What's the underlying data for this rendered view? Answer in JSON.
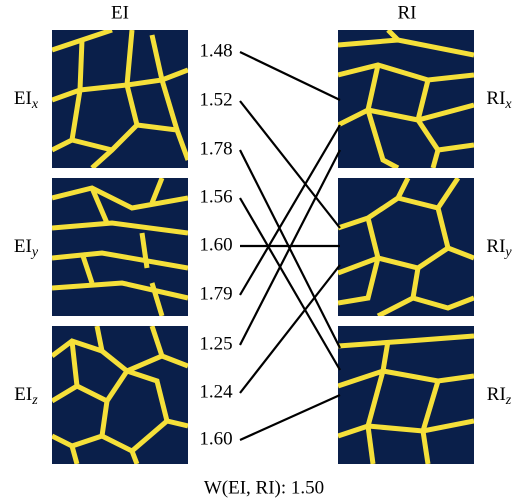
{
  "titles": {
    "left": "EI",
    "right": "RI"
  },
  "left_labels": [
    {
      "base": "EI",
      "sub": "x"
    },
    {
      "base": "EI",
      "sub": "y"
    },
    {
      "base": "EI",
      "sub": "z"
    }
  ],
  "right_labels": [
    {
      "base": "RI",
      "sub": "x"
    },
    {
      "base": "RI",
      "sub": "y"
    },
    {
      "base": "RI",
      "sub": "z"
    }
  ],
  "weights": [
    "1.48",
    "1.52",
    "1.78",
    "1.56",
    "1.60",
    "1.79",
    "1.25",
    "1.24",
    "1.60"
  ],
  "summary": "W(EI, RI): 1.50"
}
